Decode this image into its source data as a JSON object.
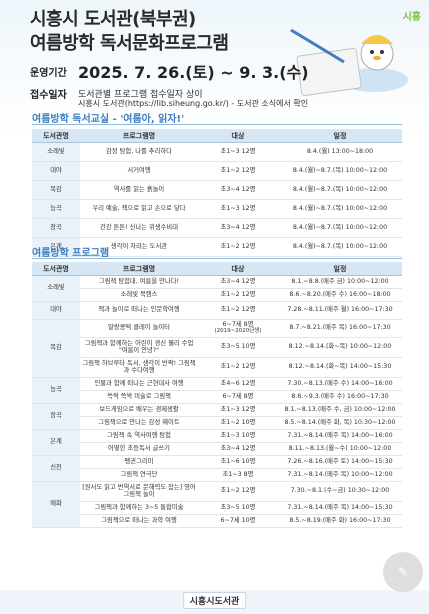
{
  "header": {
    "title_line1": "시흥시 도서관(북부권)",
    "title_line2": "여름방학 독서문화프로그램",
    "logo_text": "시흥"
  },
  "info": {
    "period_label": "운영기간",
    "period_value": "2025. 7. 26.(토) ~ 9. 3.(수)",
    "register_label": "접수일자",
    "register_value": "도서관별 프로그램 접수일자 상이",
    "register_note": "시흥시 도서관(https://lib.siheung.go.kr/) - 도서관 소식에서 확인"
  },
  "section1": {
    "title": "여름방학 독서교실 - '여름아, 읽자!'",
    "headers": [
      "도서관명",
      "프로그램명",
      "대상",
      "일정"
    ],
    "rows": [
      [
        "소래빛",
        "감정 탐험, 나를 추리하다",
        "초1~3 12명",
        "8.4.(월) 13:00~18:00"
      ],
      [
        "대야",
        "서거여행",
        "초1~2 12명",
        "8.4.(월)~8.7.(목) 10:00~12:00"
      ],
      [
        "목감",
        "역사를 읽는 흙놀이",
        "초3~4 12명",
        "8.4.(월)~8.7.(목) 10:00~12:00"
      ],
      [
        "능곡",
        "우리 예술, 책으로 읽고 손으로 닿다",
        "초1~3 12명",
        "8.4.(월)~8.7.(목) 10:00~12:00"
      ],
      [
        "장곡",
        "건강 튼튼! 신나는 위생수비대",
        "초3~4 12명",
        "8.4.(월)~8.7.(목) 10:00~12:00"
      ],
      [
        "은계",
        "생각이 자라는 도서관",
        "초1~2 12명",
        "8.4.(월)~8.7.(목) 10:00~12:00"
      ]
    ]
  },
  "section2": {
    "title": "여름방학 프로그램",
    "headers": [
      "도서관명",
      "프로그램명",
      "대상",
      "일정"
    ],
    "libraries": {
      "sorae": "소래빛",
      "daeya": "대야",
      "mokgam": "목감",
      "neunggok": "능곡",
      "janggok": "장곡",
      "eungye": "은계",
      "sincheon": "신천",
      "maehwa": "매화"
    },
    "rows": [
      {
        "program": "그림책 탐험대, 여름을 만나다!",
        "target": "초3~4 12명",
        "schedule": "8.1.~8.8.(매주 금) 10:00~12:00"
      },
      {
        "program": "소래빛 북캠스",
        "target": "초1~2 12명",
        "schedule": "8.6.~8.20.(매주 수) 16:00~18:00"
      },
      {
        "program": "책과 놀이로 떠나는 인문학여행",
        "target": "초1~2 12명",
        "schedule": "7.28.~8.11.(매주 월) 16:00~17:30"
      },
      {
        "program": "말랑콩떡 클레이 놀이터",
        "target": "6~7세 8명",
        "target_note": "(2019~2020년생)",
        "schedule": "8.7.~8.21.(매주 목) 16:00~17:30"
      },
      {
        "program": "그림책과 함께하는 어린이 경신 웰리 수업 \"여름이 안녕?\"",
        "target": "초3~5 10명",
        "schedule": "8.12.~8.14.(화~목) 10:00~12:00"
      },
      {
        "program": "그림책 하브루타 독서, 생각이 반짝! 그림책과 수다여행",
        "target": "초1~2 12명",
        "schedule": "8.12.~8.14.(화~목) 14:00~15:30"
      },
      {
        "program": "인물과 함께 떠나는 근현대사 여행",
        "target": "초4~6 12명",
        "schedule": "7.30.~8.13.(매주 수) 14:00~16:00"
      },
      {
        "program": "쓱싹 쓱싹 미술로 그림책",
        "target": "6~7세 8명",
        "schedule": "8.6.~9.3.(매주 수) 16:00~17:30"
      },
      {
        "program": "보드게임으로 배우는 경제생활",
        "target": "초1~3 12명",
        "schedule": "8.1.~8.13.(매주 수, 금) 10:00~12:00"
      },
      {
        "program": "그림책으로 만나는 감성 웨이트",
        "target": "초1~2 10명",
        "schedule": "8.5.~8.14.(매주 화, 목) 10:30~12:00"
      },
      {
        "program": "그림책 속 역사여행 탐험",
        "target": "초1~3 10명",
        "schedule": "7.31.~8.14.(매주 목) 14:00~16:00"
      },
      {
        "program": "어떻한 초등독서 글쓰기",
        "target": "초3~4 12명",
        "schedule": "8.11.~8.13.(월~수) 10:00~12:00"
      },
      {
        "program": "펭귄그리미",
        "target": "초1~6 10명",
        "schedule": "7.26.~8.16.(매주 토) 14:00~15:30"
      },
      {
        "program": "그림책 연극단",
        "target": "초1~3 8명",
        "schedule": "7.31.~8.14.(매주 목) 10:00~12:00"
      },
      {
        "program": "[원서도 읽고 번역서로 문해력도 잡는] 영어 그림책 놀이",
        "target": "초1~2 12명",
        "schedule": "7.30.~8.1.(수~금) 10:30~12:00"
      },
      {
        "program": "그림책과 함께하는 3~5 통합미술",
        "target": "초3~5 10명",
        "schedule": "7.31.~8.14.(매주 목) 14:00~15:30"
      },
      {
        "program": "그림책으로 떠나는 과학 여행",
        "target": "6~7세 10명",
        "schedule": "8.5.~8.19.(매주 화) 16:00~17:30"
      }
    ]
  },
  "footer": {
    "logo_text": "시흥시도서관"
  },
  "colors": {
    "accent": "#3f7fc1",
    "header_bg": "#d6e6f3",
    "lib_bg": "#eaf2f9"
  }
}
